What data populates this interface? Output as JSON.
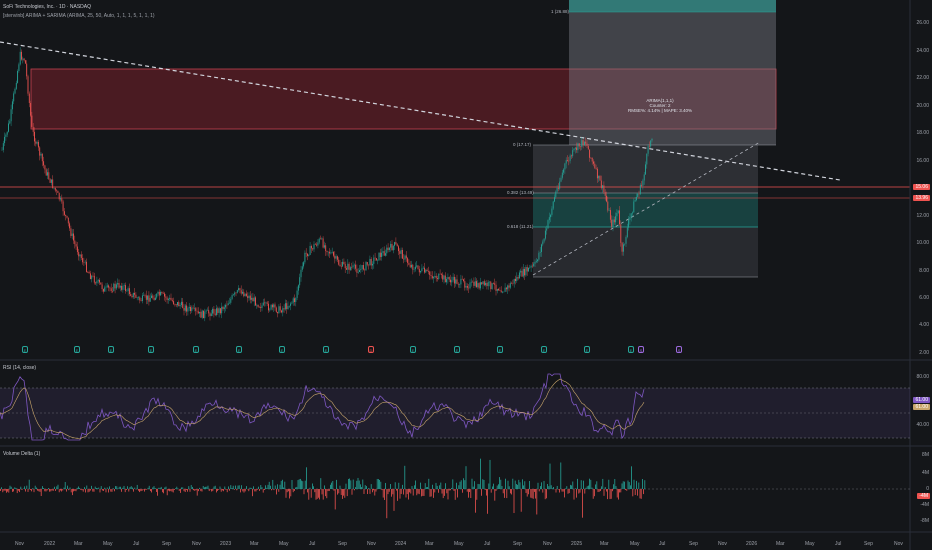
{
  "header": {
    "symbol_line": "SoFi Technologies, Inc. · 1D · NASDAQ",
    "indicator_line": "[stenvinb] ARIMA + SARIMA (ARIMA, 25, 50, Auto, 1, 1, 1, 5, 1, 1, 1)"
  },
  "price_axis": [
    "26.00",
    "24.00",
    "22.00",
    "20.00",
    "18.00",
    "16.00",
    "14.00",
    "12.00",
    "10.00",
    "8.00",
    "6.00",
    "4.00",
    "2.00"
  ],
  "price_tags": [
    {
      "value": "15.06",
      "color": "#ef5350"
    },
    {
      "value": "13.96",
      "color": "#ef5350"
    }
  ],
  "fib_labels": {
    "top": "1 (26.88)",
    "f0": "0 (17.17)",
    "f382": "0.382 (13.49)",
    "f618": "0.618 (11.21)"
  },
  "annotation": {
    "line1": "ARIMA(1,1,1)",
    "line2": "Counter: 2",
    "line3": "RMSE%: 4.14% | MAPE: 3.40%"
  },
  "rsi": {
    "label": "RSI (14, close)",
    "axis": [
      "80.00",
      "40.00"
    ],
    "tags": [
      "61.00",
      "61.00"
    ]
  },
  "volume_delta": {
    "label": "Volume Delta (1)",
    "axis": [
      "8M",
      "4M",
      "0",
      "-4M",
      "-8M"
    ],
    "tag": "-4M"
  },
  "time_axis": [
    "Nov",
    "2022",
    "Mar",
    "May",
    "Jul",
    "Sep",
    "Nov",
    "2023",
    "Mar",
    "May",
    "Jul",
    "Sep",
    "Nov",
    "2024",
    "Mar",
    "May",
    "Jul",
    "Sep",
    "Nov",
    "2025",
    "Mar",
    "May",
    "Jul",
    "Sep",
    "Nov",
    "2026",
    "Mar",
    "May",
    "Jul",
    "Sep",
    "Nov"
  ],
  "events": [
    "E",
    "E",
    "E",
    "E",
    "E",
    "E",
    "E",
    "E",
    "D",
    "E",
    "E",
    "E",
    "E",
    "E",
    "E",
    "S",
    "S"
  ],
  "colors": {
    "up": "#26a69a",
    "down": "#ef5350",
    "rsi_line": "#7e57c2",
    "background": "#141619"
  }
}
